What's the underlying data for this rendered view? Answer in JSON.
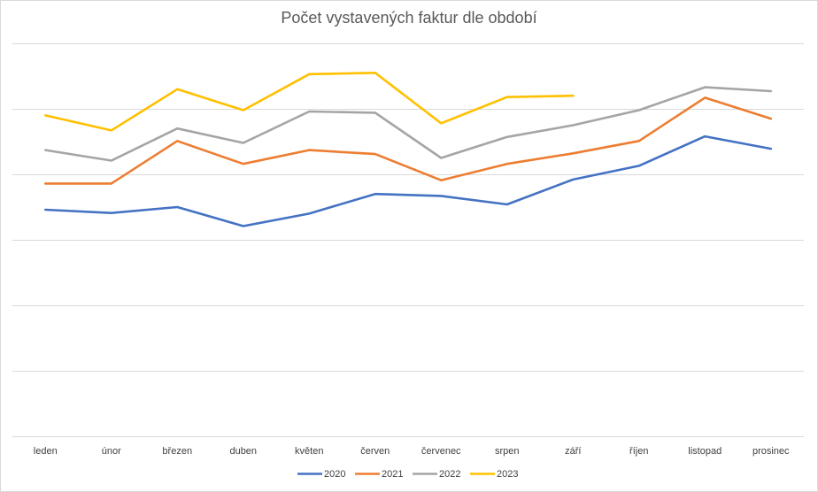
{
  "chart_data": {
    "type": "line",
    "title": "Počet vystavených faktur dle období",
    "xlabel": "",
    "ylabel": "",
    "categories": [
      "leden",
      "únor",
      "březen",
      "duben",
      "květen",
      "červen",
      "červenec",
      "srpen",
      "září",
      "říjen",
      "listopad",
      "prosinec"
    ],
    "ylim": [
      0,
      6
    ],
    "y_tick_labels_shown": false,
    "grid": true,
    "legend_position": "bottom",
    "series": [
      {
        "name": "2020",
        "color": "#4472c4",
        "values": [
          3.46,
          3.41,
          3.5,
          3.21,
          3.4,
          3.7,
          3.67,
          3.54,
          3.92,
          4.13,
          4.58,
          4.39
        ]
      },
      {
        "name": "2021",
        "color": "#ed7d31",
        "values": [
          3.86,
          3.86,
          4.51,
          4.16,
          4.37,
          4.31,
          3.91,
          4.16,
          4.32,
          4.51,
          5.17,
          4.85
        ]
      },
      {
        "name": "2022",
        "color": "#a5a5a5",
        "values": [
          4.37,
          4.21,
          4.7,
          4.48,
          4.96,
          4.94,
          4.25,
          4.57,
          4.75,
          4.98,
          5.33,
          5.27
        ]
      },
      {
        "name": "2023",
        "color": "#ffc000",
        "values": [
          4.9,
          4.67,
          5.3,
          4.98,
          5.53,
          5.55,
          4.78,
          5.18,
          5.2,
          null,
          null,
          null
        ]
      }
    ]
  }
}
